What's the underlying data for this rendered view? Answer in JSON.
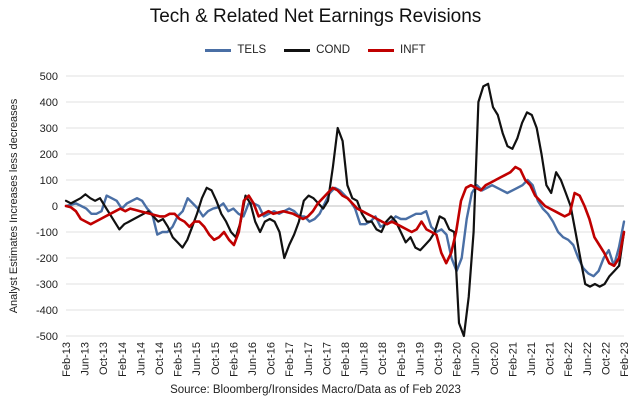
{
  "chart_data": {
    "type": "line",
    "title": "Tech & Related Net Earnings Revisions",
    "ylabel": "Analyst Estimates Increases less decreases",
    "xlabel": "",
    "source": "Source: Bloomberg/Ironsides Macro/Data as of Feb 2023",
    "ylim": [
      -500,
      500
    ],
    "yticks": [
      500,
      400,
      300,
      200,
      100,
      0,
      -100,
      -200,
      -300,
      -400,
      -500
    ],
    "x_start": "2013-02",
    "x_tick_labels": [
      "Feb-13",
      "Jun-13",
      "Oct-13",
      "Feb-14",
      "Jun-14",
      "Oct-14",
      "Feb-15",
      "Jun-15",
      "Oct-15",
      "Feb-16",
      "Jun-16",
      "Oct-16",
      "Feb-17",
      "Jun-17",
      "Oct-17",
      "Feb-18",
      "Jun-18",
      "Oct-18",
      "Feb-19",
      "Jun-19",
      "Oct-19",
      "Feb-20",
      "Jun-20",
      "Oct-20",
      "Feb-21",
      "Jun-21",
      "Oct-21",
      "Feb-22",
      "Jun-22",
      "Oct-22",
      "Feb-23"
    ],
    "grid": "horizontal",
    "legend_position": "top-center",
    "series": [
      {
        "name": "TELS",
        "color": "#4a6fa5",
        "values": [
          0,
          5,
          10,
          0,
          -10,
          -30,
          -30,
          -20,
          40,
          30,
          20,
          -10,
          10,
          20,
          30,
          20,
          -10,
          -30,
          -110,
          -100,
          -100,
          -80,
          -40,
          -20,
          30,
          10,
          -10,
          -40,
          -20,
          -10,
          -5,
          10,
          -20,
          -10,
          -30,
          -40,
          10,
          10,
          0,
          -40,
          -30,
          -20,
          -30,
          -20,
          -10,
          -20,
          -40,
          -40,
          -60,
          -50,
          -30,
          10,
          50,
          70,
          60,
          40,
          20,
          -10,
          -70,
          -70,
          -60,
          -40,
          -80,
          -70,
          -60,
          -40,
          -50,
          -50,
          -40,
          -30,
          -30,
          -20,
          -80,
          -100,
          -90,
          -110,
          -200,
          -250,
          -200,
          -50,
          50,
          80,
          60,
          70,
          80,
          70,
          60,
          50,
          60,
          70,
          80,
          100,
          80,
          20,
          -10,
          -30,
          -60,
          -100,
          -120,
          -130,
          -150,
          -200,
          -240,
          -260,
          -270,
          -250,
          -200,
          -170,
          -230,
          -160,
          -60
        ]
      },
      {
        "name": "COND",
        "color": "#111111",
        "values": [
          20,
          10,
          20,
          30,
          45,
          30,
          20,
          30,
          0,
          -30,
          -60,
          -90,
          -70,
          -60,
          -50,
          -40,
          -30,
          -20,
          -40,
          -60,
          -50,
          -80,
          -120,
          -140,
          -160,
          -130,
          -80,
          -30,
          30,
          70,
          60,
          20,
          -30,
          -60,
          -100,
          -120,
          -60,
          40,
          10,
          -60,
          -100,
          -60,
          -50,
          -60,
          -100,
          -200,
          -150,
          -110,
          -60,
          20,
          40,
          30,
          10,
          -10,
          20,
          150,
          300,
          250,
          80,
          30,
          20,
          -30,
          -60,
          -60,
          -90,
          -100,
          -60,
          -40,
          -60,
          -100,
          -140,
          -120,
          -160,
          -170,
          -150,
          -130,
          -100,
          -40,
          -50,
          -90,
          -100,
          -450,
          -500,
          -350,
          -100,
          400,
          460,
          470,
          380,
          350,
          280,
          230,
          220,
          260,
          320,
          360,
          350,
          300,
          200,
          80,
          50,
          130,
          100,
          50,
          0,
          -100,
          -200,
          -300,
          -310,
          -300,
          -310,
          -300,
          -270,
          -250,
          -230,
          -100
        ]
      },
      {
        "name": "INFT",
        "color": "#c00000",
        "values": [
          0,
          -5,
          -20,
          -50,
          -60,
          -70,
          -60,
          -50,
          -40,
          -30,
          -20,
          -10,
          -20,
          -10,
          -15,
          -20,
          -25,
          -30,
          -35,
          -40,
          -40,
          -30,
          -30,
          -50,
          -60,
          -80,
          -60,
          -60,
          -80,
          -110,
          -130,
          -120,
          -100,
          -130,
          -150,
          -100,
          20,
          40,
          10,
          -40,
          -30,
          -20,
          -30,
          -25,
          -20,
          -25,
          -30,
          -40,
          -50,
          -40,
          -20,
          10,
          30,
          50,
          70,
          60,
          40,
          30,
          10,
          -10,
          -20,
          -30,
          -40,
          -50,
          -60,
          -70,
          -60,
          -70,
          -80,
          -90,
          -100,
          -90,
          -60,
          -90,
          -100,
          -110,
          -180,
          -220,
          -180,
          -100,
          20,
          70,
          80,
          70,
          60,
          80,
          90,
          100,
          110,
          120,
          130,
          150,
          140,
          100,
          80,
          40,
          20,
          0,
          -10,
          -20,
          -30,
          -40,
          -30,
          50,
          40,
          0,
          -50,
          -120,
          -150,
          -180,
          -220,
          -230,
          -200,
          -100
        ]
      }
    ]
  }
}
